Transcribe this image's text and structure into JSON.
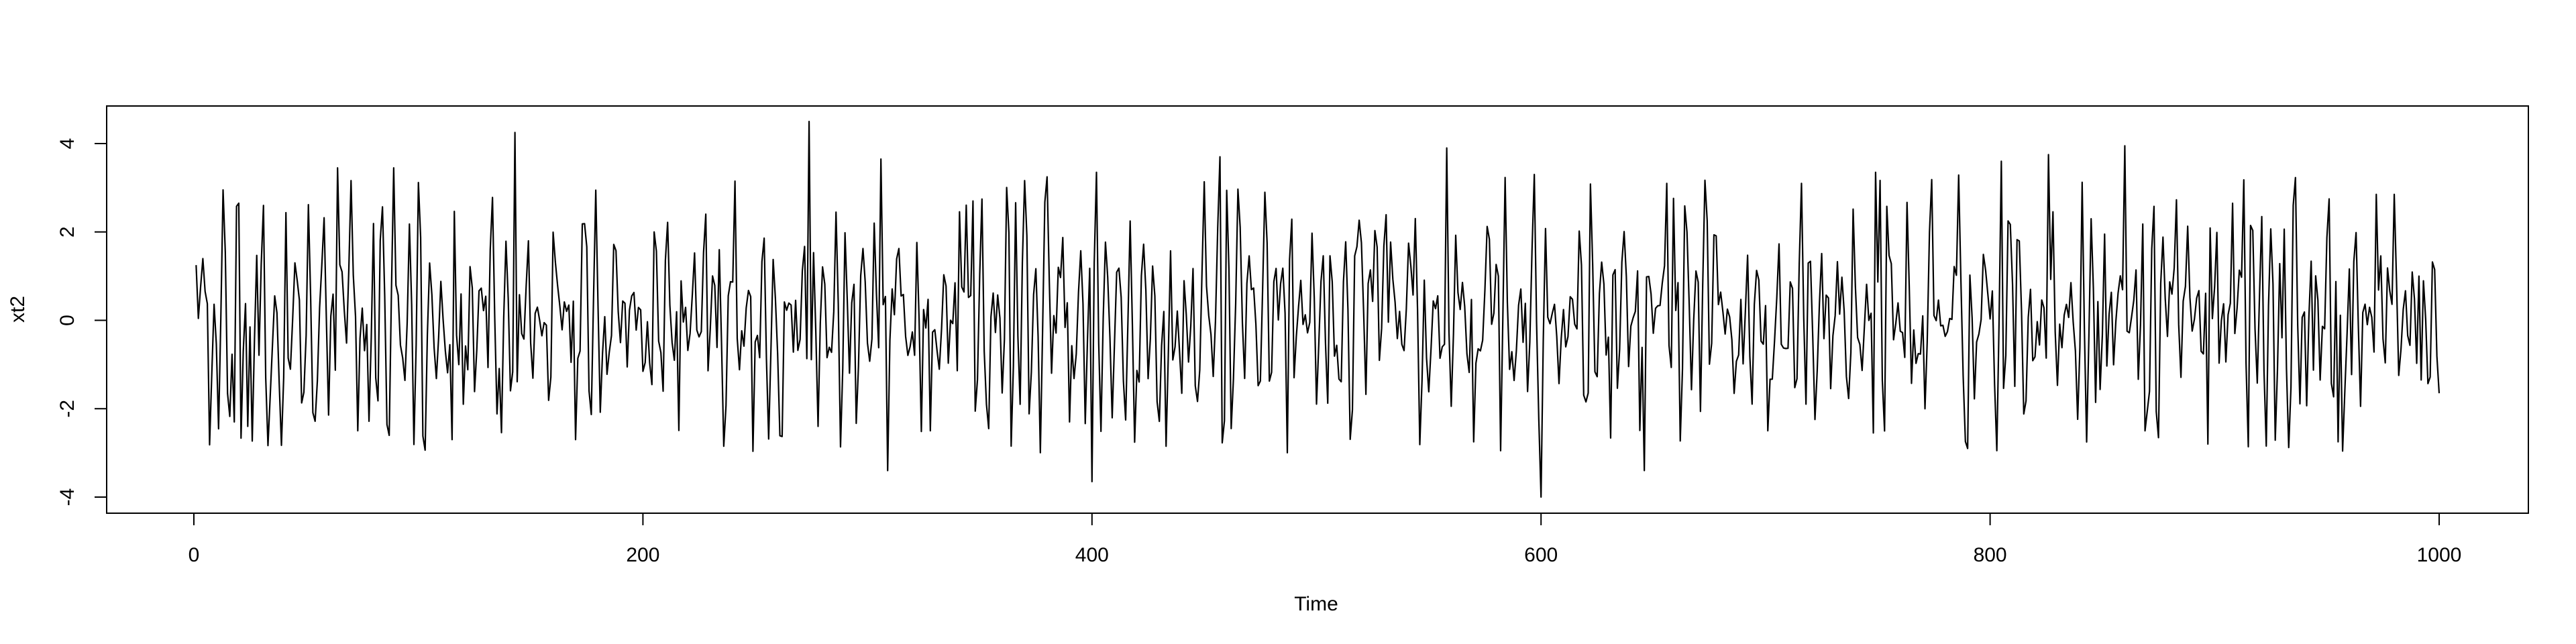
{
  "chart_data": {
    "type": "line",
    "title": "",
    "xlabel": "Time",
    "ylabel": "xt2",
    "xlim": [
      0,
      1000
    ],
    "ylim": [
      -4,
      4.5
    ],
    "x_ticks": [
      "0",
      "200",
      "400",
      "600",
      "800",
      "1000"
    ],
    "y_ticks": [
      "-4",
      "-2",
      "0",
      "2",
      "4"
    ],
    "grid": false,
    "legend": "none",
    "line_color": "#000000",
    "series": [
      {
        "x_start": 1,
        "x_step": 1,
        "n": 1000,
        "seed": 20240521,
        "ar": [
          0.3,
          -0.55
        ],
        "noise_sd": 1.15,
        "anchors": [
          [
            1,
            1.25
          ],
          [
            18,
            -2.3
          ],
          [
            20,
            2.65
          ],
          [
            24,
            -2.4
          ],
          [
            45,
            1.3
          ],
          [
            64,
            3.45
          ],
          [
            73,
            -2.5
          ],
          [
            89,
            3.45
          ],
          [
            115,
            -2.7
          ],
          [
            143,
            4.25
          ],
          [
            170,
            -2.7
          ],
          [
            205,
            2.0
          ],
          [
            236,
            -2.85
          ],
          [
            241,
            3.15
          ],
          [
            274,
            4.5
          ],
          [
            278,
            -2.4
          ],
          [
            306,
            3.65
          ],
          [
            309,
            -3.4
          ],
          [
            328,
            -2.5
          ],
          [
            347,
            2.7
          ],
          [
            385,
            1.2
          ],
          [
            390,
            -2.3
          ],
          [
            400,
            -3.65
          ],
          [
            402,
            3.35
          ],
          [
            433,
            -2.85
          ],
          [
            457,
            3.7
          ],
          [
            558,
            3.9
          ],
          [
            570,
            -2.75
          ],
          [
            597,
            3.3
          ],
          [
            600,
            -4.0
          ],
          [
            646,
            -3.4
          ],
          [
            656,
            3.1
          ],
          [
            701,
            -2.5
          ],
          [
            716,
            3.1
          ],
          [
            749,
            3.35
          ],
          [
            790,
            -2.9
          ],
          [
            803,
            -2.95
          ],
          [
            805,
            3.6
          ],
          [
            826,
            3.75
          ],
          [
            860,
            3.95
          ],
          [
            869,
            -2.5
          ],
          [
            897,
            -2.8
          ],
          [
            908,
            2.65
          ],
          [
            955,
            -2.75
          ],
          [
            972,
            2.85
          ],
          [
            980,
            2.85
          ],
          [
            991,
            1.0
          ],
          [
            1000,
            -1.65
          ]
        ]
      }
    ]
  }
}
